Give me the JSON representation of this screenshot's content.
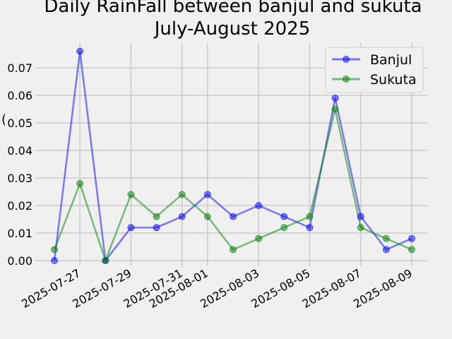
{
  "chart_data": {
    "type": "line",
    "title_lines": [
      "Daily RainFall between banjul and sukuta",
      "July-August 2025"
    ],
    "xlabel": "",
    "ylabel": "",
    "x": [
      "2025-07-26",
      "2025-07-27",
      "2025-07-28",
      "2025-07-29",
      "2025-07-30",
      "2025-07-31",
      "2025-08-01",
      "2025-08-02",
      "2025-08-03",
      "2025-08-04",
      "2025-08-05",
      "2025-08-06",
      "2025-08-07",
      "2025-08-08",
      "2025-08-09"
    ],
    "x_tick_labels": [
      "2025-07-27",
      "2025-07-29",
      "2025-07-31",
      "2025-08-01",
      "2025-08-03",
      "2025-08-05",
      "2025-08-07",
      "2025-08-09"
    ],
    "y_ticks": [
      0.0,
      0.01,
      0.02,
      0.03,
      0.04,
      0.05,
      0.06,
      0.07
    ],
    "y_tick_labels": [
      "0.00",
      "0.01",
      "0.02",
      "0.03",
      "0.04",
      "0.05",
      "0.06",
      "0.07"
    ],
    "ylim": [
      -0.002,
      0.08
    ],
    "xlim": [
      "2025-07-25",
      "2025-08-10"
    ],
    "grid": true,
    "legend_position": "top-right",
    "series": [
      {
        "name": "Banjul",
        "color": "#0000ff",
        "values": [
          0.0,
          0.076,
          0.0,
          0.012,
          0.012,
          0.016,
          0.024,
          0.016,
          0.02,
          0.016,
          0.012,
          0.059,
          0.016,
          0.004,
          0.008
        ]
      },
      {
        "name": "Sukuta",
        "color": "#008000",
        "values": [
          0.004,
          0.028,
          0.0,
          0.024,
          0.016,
          0.024,
          0.016,
          0.004,
          0.008,
          0.012,
          0.016,
          0.055,
          0.012,
          0.008,
          0.004
        ]
      }
    ]
  }
}
